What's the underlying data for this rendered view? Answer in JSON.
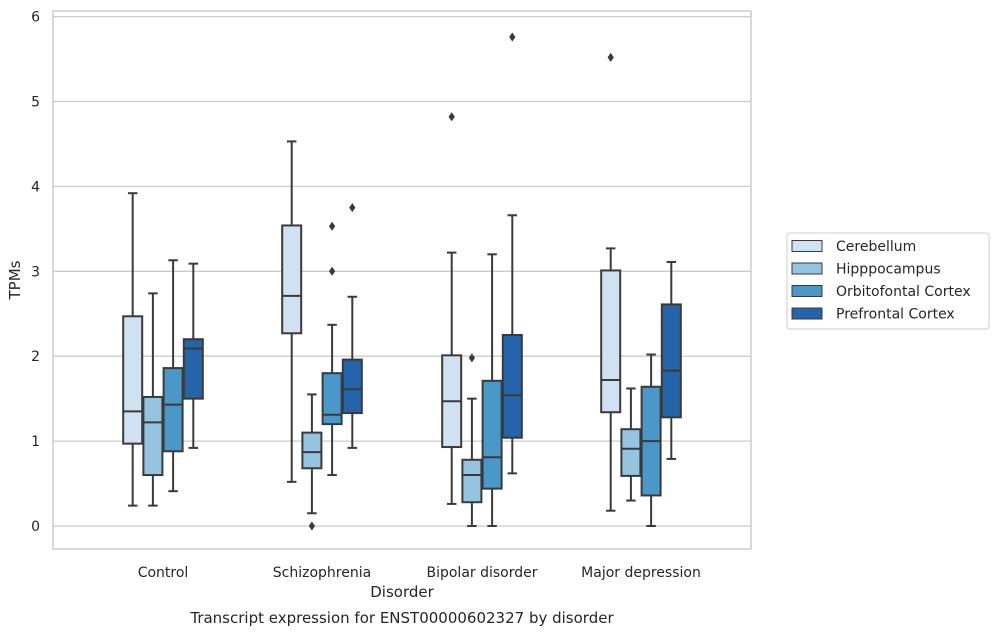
{
  "chart_data": {
    "type": "boxplot",
    "xlabel": "Disorder",
    "ylabel": "TPMs",
    "caption": "Transcript expression for ENST00000602327 by disorder",
    "ylim": [
      -0.28,
      6.05
    ],
    "yticks": [
      0,
      1,
      2,
      3,
      4,
      5,
      6
    ],
    "grid": "horizontal",
    "legend_position": "right",
    "categories": [
      "Control",
      "Schizophrenia",
      "Bipolar disorder",
      "Major depression"
    ],
    "series": [
      {
        "name": "Cerebellum",
        "color": "#d0e1f2",
        "boxes": [
          {
            "whisker_low": 0.24,
            "q1": 0.97,
            "median": 1.35,
            "q3": 2.47,
            "whisker_high": 3.92,
            "outliers": []
          },
          {
            "whisker_low": 0.52,
            "q1": 2.27,
            "median": 2.71,
            "q3": 3.54,
            "whisker_high": 4.53,
            "outliers": []
          },
          {
            "whisker_low": 0.26,
            "q1": 0.93,
            "median": 1.47,
            "q3": 2.01,
            "whisker_high": 3.22,
            "outliers": [
              4.82
            ]
          },
          {
            "whisker_low": 0.18,
            "q1": 1.34,
            "median": 1.72,
            "q3": 3.01,
            "whisker_high": 3.27,
            "outliers": [
              5.52
            ]
          }
        ]
      },
      {
        "name": "Hipppocampus",
        "color": "#94c4df",
        "boxes": [
          {
            "whisker_low": 0.24,
            "q1": 0.6,
            "median": 1.22,
            "q3": 1.52,
            "whisker_high": 2.74,
            "outliers": []
          },
          {
            "whisker_low": 0.15,
            "q1": 0.68,
            "median": 0.87,
            "q3": 1.1,
            "whisker_high": 1.55,
            "outliers": [
              0.0
            ]
          },
          {
            "whisker_low": 0.0,
            "q1": 0.28,
            "median": 0.6,
            "q3": 0.78,
            "whisker_high": 1.5,
            "outliers": [
              1.98
            ]
          },
          {
            "whisker_low": 0.3,
            "q1": 0.59,
            "median": 0.91,
            "q3": 1.14,
            "whisker_high": 1.62,
            "outliers": []
          }
        ]
      },
      {
        "name": "Orbitofontal Cortex",
        "color": "#4a98c9",
        "boxes": [
          {
            "whisker_low": 0.41,
            "q1": 0.88,
            "median": 1.43,
            "q3": 1.86,
            "whisker_high": 3.13,
            "outliers": []
          },
          {
            "whisker_low": 0.6,
            "q1": 1.2,
            "median": 1.31,
            "q3": 1.8,
            "whisker_high": 2.37,
            "outliers": [
              3.0,
              3.53
            ]
          },
          {
            "whisker_low": 0.0,
            "q1": 0.44,
            "median": 0.81,
            "q3": 1.71,
            "whisker_high": 3.2,
            "outliers": []
          },
          {
            "whisker_low": 0.0,
            "q1": 0.36,
            "median": 1.0,
            "q3": 1.64,
            "whisker_high": 2.02,
            "outliers": []
          }
        ]
      },
      {
        "name": "Prefrontal Cortex",
        "color": "#2464ab",
        "boxes": [
          {
            "whisker_low": 0.92,
            "q1": 1.5,
            "median": 2.09,
            "q3": 2.2,
            "whisker_high": 3.09,
            "outliers": []
          },
          {
            "whisker_low": 0.92,
            "q1": 1.33,
            "median": 1.61,
            "q3": 1.96,
            "whisker_high": 2.7,
            "outliers": [
              3.75
            ]
          },
          {
            "whisker_low": 0.62,
            "q1": 1.04,
            "median": 1.54,
            "q3": 2.25,
            "whisker_high": 3.66,
            "outliers": [
              5.76
            ]
          },
          {
            "whisker_low": 0.79,
            "q1": 1.28,
            "median": 1.83,
            "q3": 2.61,
            "whisker_high": 3.11,
            "outliers": []
          }
        ]
      }
    ]
  },
  "colors": {
    "line": "#3a3a3a",
    "grid": "#cccccc",
    "frame": "#cccccc"
  }
}
